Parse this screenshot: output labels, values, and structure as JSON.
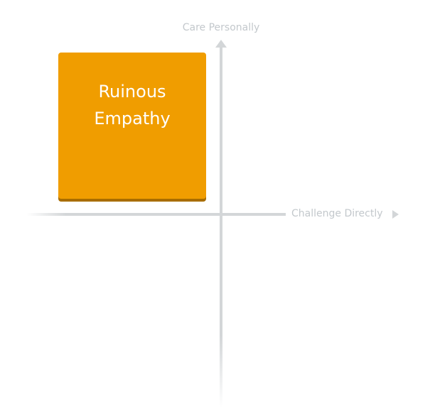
{
  "axes": {
    "vertical_label": "Care Personally",
    "horizontal_label": "Challenge Directly",
    "color": "#d3d6d8"
  },
  "quadrant": {
    "line1": "Ruinous",
    "line2": "Empathy",
    "position": "top-left",
    "color": "#f09d00"
  }
}
